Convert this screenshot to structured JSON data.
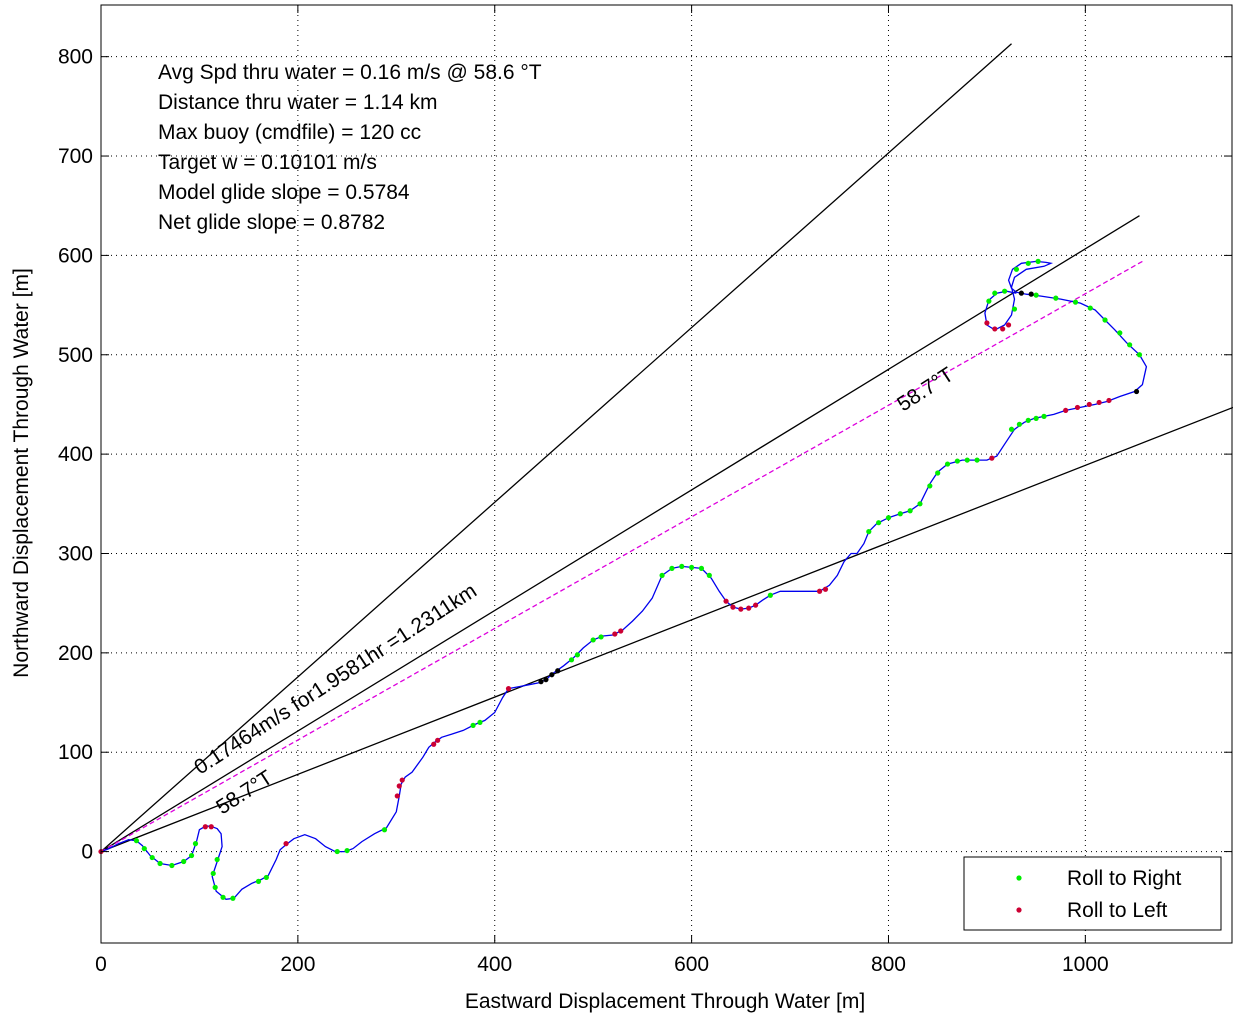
{
  "chart_data": {
    "type": "line",
    "xlabel": "Eastward Displacement Through Water [m]",
    "ylabel": "Northward Displacement Through Water [m]",
    "xlim": [
      0,
      1150
    ],
    "ylim": [
      -92,
      852
    ],
    "grid": true,
    "x_ticks": [
      0,
      200,
      400,
      600,
      800,
      1000
    ],
    "y_ticks": [
      0,
      100,
      200,
      300,
      400,
      500,
      600,
      700,
      800
    ],
    "legend": {
      "placement": "bottom-right",
      "entries": [
        {
          "label": "Roll to Right",
          "color": "#00ee00"
        },
        {
          "label": "Roll to Left",
          "color": "#cc0033"
        }
      ]
    },
    "info_text": [
      "Avg Spd thru water =  0.16 m/s @  58.6   °T",
      "Distance thru water =  1.14 km",
      "Max buoy (cmdfile) = 120 cc",
      "Target w = 0.10101 m/s",
      "Model glide slope = 0.5784",
      "Net glide slope = 0.8782"
    ],
    "annotations": {
      "speed_label": "0.17464m/s for1.9581hr =1.2311km",
      "heading_lower": "58.7°T",
      "heading_upper": "58.7°T"
    },
    "reference_lines": [
      {
        "from": [
          0,
          0
        ],
        "to": [
          925,
          813
        ],
        "color": "#000000"
      },
      {
        "from": [
          0,
          0
        ],
        "to": [
          1055,
          640
        ],
        "color": "#000000"
      },
      {
        "from": [
          0,
          0
        ],
        "to": [
          1150,
          447
        ],
        "color": "#000000"
      },
      {
        "from": [
          0,
          0
        ],
        "to": [
          1058,
          594
        ],
        "color": "#dd00dd",
        "dashed": true
      }
    ],
    "track": [
      [
        0,
        0
      ],
      [
        8,
        3
      ],
      [
        18,
        8
      ],
      [
        28,
        12
      ],
      [
        36,
        11
      ],
      [
        42,
        6
      ],
      [
        50,
        -4
      ],
      [
        60,
        -12
      ],
      [
        72,
        -14
      ],
      [
        84,
        -10
      ],
      [
        92,
        -4
      ],
      [
        97,
        10
      ],
      [
        100,
        22
      ],
      [
        107,
        26
      ],
      [
        113,
        25
      ],
      [
        118,
        23
      ],
      [
        122,
        18
      ],
      [
        123,
        5
      ],
      [
        118,
        -10
      ],
      [
        113,
        -25
      ],
      [
        117,
        -40
      ],
      [
        127,
        -48
      ],
      [
        135,
        -47
      ],
      [
        143,
        -38
      ],
      [
        153,
        -32
      ],
      [
        163,
        -28
      ],
      [
        170,
        -24
      ],
      [
        178,
        -8
      ],
      [
        182,
        2
      ],
      [
        188,
        7
      ],
      [
        196,
        13
      ],
      [
        207,
        17
      ],
      [
        218,
        13
      ],
      [
        228,
        5
      ],
      [
        238,
        0
      ],
      [
        248,
        0
      ],
      [
        256,
        3
      ],
      [
        265,
        10
      ],
      [
        278,
        18
      ],
      [
        290,
        24
      ],
      [
        300,
        40
      ],
      [
        303,
        56
      ],
      [
        305,
        68
      ],
      [
        309,
        75
      ],
      [
        316,
        80
      ],
      [
        327,
        95
      ],
      [
        333,
        105
      ],
      [
        339,
        110
      ],
      [
        346,
        115
      ],
      [
        356,
        118
      ],
      [
        368,
        122
      ],
      [
        380,
        128
      ],
      [
        390,
        132
      ],
      [
        400,
        140
      ],
      [
        408,
        155
      ],
      [
        414,
        164
      ],
      [
        425,
        166
      ],
      [
        435,
        168
      ],
      [
        445,
        170
      ],
      [
        452,
        173
      ],
      [
        460,
        180
      ],
      [
        470,
        187
      ],
      [
        480,
        195
      ],
      [
        490,
        205
      ],
      [
        500,
        213
      ],
      [
        510,
        217
      ],
      [
        520,
        218
      ],
      [
        530,
        223
      ],
      [
        540,
        232
      ],
      [
        550,
        242
      ],
      [
        560,
        255
      ],
      [
        570,
        278
      ],
      [
        580,
        285
      ],
      [
        590,
        287
      ],
      [
        600,
        286
      ],
      [
        610,
        285
      ],
      [
        620,
        275
      ],
      [
        628,
        262
      ],
      [
        635,
        252
      ],
      [
        642,
        246
      ],
      [
        650,
        244
      ],
      [
        658,
        245
      ],
      [
        665,
        248
      ],
      [
        672,
        253
      ],
      [
        680,
        258
      ],
      [
        690,
        262
      ],
      [
        700,
        262
      ],
      [
        710,
        262
      ],
      [
        720,
        262
      ],
      [
        730,
        262
      ],
      [
        740,
        268
      ],
      [
        748,
        278
      ],
      [
        755,
        292
      ],
      [
        762,
        300
      ],
      [
        768,
        300
      ],
      [
        775,
        310
      ],
      [
        780,
        322
      ],
      [
        788,
        330
      ],
      [
        800,
        336
      ],
      [
        812,
        340
      ],
      [
        822,
        343
      ],
      [
        832,
        350
      ],
      [
        842,
        370
      ],
      [
        850,
        382
      ],
      [
        860,
        390
      ],
      [
        875,
        394
      ],
      [
        890,
        394
      ],
      [
        900,
        394
      ],
      [
        910,
        398
      ],
      [
        918,
        410
      ],
      [
        928,
        425
      ],
      [
        938,
        432
      ],
      [
        948,
        436
      ],
      [
        958,
        438
      ],
      [
        968,
        440
      ],
      [
        980,
        444
      ],
      [
        995,
        447
      ],
      [
        1010,
        450
      ],
      [
        1022,
        453
      ],
      [
        1035,
        458
      ],
      [
        1050,
        463
      ],
      [
        1058,
        470
      ],
      [
        1062,
        488
      ],
      [
        1055,
        500
      ],
      [
        1042,
        512
      ],
      [
        1030,
        525
      ],
      [
        1020,
        535
      ],
      [
        1010,
        545
      ],
      [
        995,
        552
      ],
      [
        975,
        556
      ],
      [
        955,
        559
      ],
      [
        940,
        561
      ],
      [
        930,
        563
      ],
      [
        925,
        567
      ],
      [
        922,
        575
      ],
      [
        926,
        586
      ],
      [
        935,
        592
      ],
      [
        950,
        594
      ],
      [
        960,
        593
      ],
      [
        965,
        592
      ],
      [
        958,
        589
      ],
      [
        940,
        586
      ],
      [
        928,
        578
      ],
      [
        925,
        568
      ],
      [
        928,
        556
      ],
      [
        925,
        540
      ],
      [
        918,
        530
      ],
      [
        908,
        525
      ],
      [
        900,
        530
      ],
      [
        898,
        542
      ],
      [
        902,
        555
      ],
      [
        910,
        562
      ],
      [
        920,
        564
      ],
      [
        930,
        562
      ]
    ],
    "roll_right_points": [
      [
        36,
        11
      ],
      [
        44,
        3
      ],
      [
        52,
        -6
      ],
      [
        60,
        -12
      ],
      [
        72,
        -14
      ],
      [
        84,
        -10
      ],
      [
        92,
        -4
      ],
      [
        96,
        8
      ],
      [
        118,
        -8
      ],
      [
        114,
        -22
      ],
      [
        116,
        -36
      ],
      [
        124,
        -46
      ],
      [
        134,
        -47
      ],
      [
        160,
        -30
      ],
      [
        168,
        -26
      ],
      [
        240,
        0
      ],
      [
        250,
        1
      ],
      [
        288,
        22
      ],
      [
        378,
        127
      ],
      [
        385,
        130
      ],
      [
        478,
        193
      ],
      [
        484,
        198
      ],
      [
        500,
        213
      ],
      [
        508,
        216
      ],
      [
        570,
        278
      ],
      [
        580,
        285
      ],
      [
        590,
        287
      ],
      [
        600,
        286
      ],
      [
        610,
        285
      ],
      [
        618,
        278
      ],
      [
        680,
        258
      ],
      [
        780,
        322
      ],
      [
        790,
        331
      ],
      [
        800,
        336
      ],
      [
        812,
        340
      ],
      [
        822,
        343
      ],
      [
        832,
        350
      ],
      [
        842,
        368
      ],
      [
        850,
        381
      ],
      [
        860,
        390
      ],
      [
        870,
        393
      ],
      [
        880,
        394
      ],
      [
        890,
        394
      ],
      [
        925,
        425
      ],
      [
        933,
        430
      ],
      [
        942,
        434
      ],
      [
        950,
        436
      ],
      [
        958,
        438
      ],
      [
        1005,
        547
      ],
      [
        1020,
        535
      ],
      [
        1035,
        522
      ],
      [
        1045,
        510
      ],
      [
        1055,
        500
      ],
      [
        990,
        553
      ],
      [
        970,
        557
      ],
      [
        950,
        560
      ],
      [
        930,
        586
      ],
      [
        942,
        592
      ],
      [
        952,
        594
      ],
      [
        908,
        562
      ],
      [
        902,
        554
      ],
      [
        918,
        564
      ],
      [
        928,
        546
      ]
    ],
    "roll_left_points": [
      [
        0,
        0
      ],
      [
        106,
        25
      ],
      [
        112,
        25
      ],
      [
        188,
        8
      ],
      [
        301,
        56
      ],
      [
        303,
        66
      ],
      [
        306,
        72
      ],
      [
        338,
        108
      ],
      [
        342,
        112
      ],
      [
        414,
        164
      ],
      [
        528,
        222
      ],
      [
        522,
        219
      ],
      [
        635,
        252
      ],
      [
        642,
        246
      ],
      [
        650,
        244
      ],
      [
        658,
        245
      ],
      [
        665,
        248
      ],
      [
        730,
        262
      ],
      [
        736,
        264
      ],
      [
        905,
        396
      ],
      [
        980,
        444
      ],
      [
        992,
        447
      ],
      [
        1004,
        450
      ],
      [
        1014,
        452
      ],
      [
        1024,
        454
      ],
      [
        900,
        532
      ],
      [
        908,
        526
      ],
      [
        916,
        526
      ],
      [
        922,
        530
      ]
    ],
    "black_points": [
      [
        447,
        171
      ],
      [
        452,
        173
      ],
      [
        458,
        178
      ],
      [
        464,
        182
      ],
      [
        935,
        562
      ],
      [
        945,
        561
      ],
      [
        1052,
        463
      ]
    ]
  }
}
